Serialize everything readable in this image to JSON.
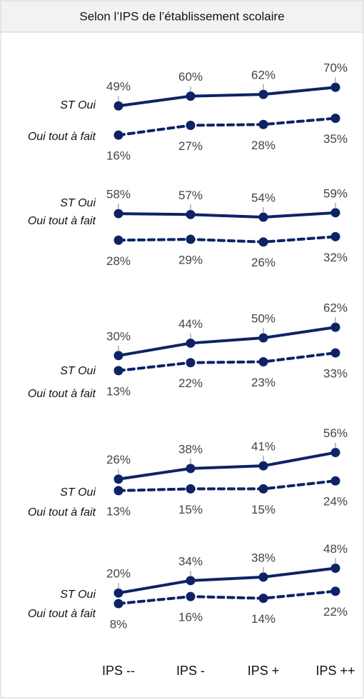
{
  "title": "Selon l’IPS de l’établissement scolaire",
  "categories": [
    "IPS --",
    "IPS -",
    "IPS +",
    "IPS ++"
  ],
  "chart_data": [
    {
      "type": "line",
      "ylim": [
        0,
        100
      ],
      "series": [
        {
          "name": "ST Oui",
          "color": "#0d2366",
          "values": [
            49,
            60,
            62,
            70
          ],
          "value_labels": [
            "49%",
            "60%",
            "62%",
            "70%"
          ]
        },
        {
          "name": "Oui tout à fait",
          "color": "#0d2366",
          "dashed": true,
          "values": [
            16,
            27,
            28,
            35
          ],
          "value_labels": [
            "16%",
            "27%",
            "28%",
            "35%"
          ]
        }
      ]
    },
    {
      "type": "line",
      "ylim": [
        0,
        100
      ],
      "series": [
        {
          "name": "ST Oui",
          "color": "#0d2366",
          "values": [
            58,
            57,
            54,
            59
          ],
          "value_labels": [
            "58%",
            "57%",
            "54%",
            "59%"
          ]
        },
        {
          "name": "Oui tout à fait",
          "color": "#0d2366",
          "dashed": true,
          "values": [
            28,
            29,
            26,
            32
          ],
          "value_labels": [
            "28%",
            "29%",
            "26%",
            "32%"
          ]
        }
      ]
    },
    {
      "type": "line",
      "ylim": [
        0,
        100
      ],
      "series": [
        {
          "name": "ST Oui",
          "color": "#0d2366",
          "values": [
            30,
            44,
            50,
            62
          ],
          "value_labels": [
            "30%",
            "44%",
            "50%",
            "62%"
          ]
        },
        {
          "name": "Oui tout à fait",
          "color": "#0d2366",
          "dashed": true,
          "values": [
            13,
            22,
            23,
            33
          ],
          "value_labels": [
            "13%",
            "22%",
            "23%",
            "33%"
          ]
        }
      ]
    },
    {
      "type": "line",
      "ylim": [
        0,
        100
      ],
      "series": [
        {
          "name": "ST Oui",
          "color": "#0d2366",
          "values": [
            26,
            38,
            41,
            56
          ],
          "value_labels": [
            "26%",
            "38%",
            "41%",
            "56%"
          ]
        },
        {
          "name": "Oui tout à fait",
          "color": "#0d2366",
          "dashed": true,
          "values": [
            13,
            15,
            15,
            24
          ],
          "value_labels": [
            "13%",
            "15%",
            "15%",
            "24%"
          ]
        }
      ]
    },
    {
      "type": "line",
      "ylim": [
        0,
        100
      ],
      "series": [
        {
          "name": "ST Oui",
          "color": "#0d2366",
          "values": [
            20,
            34,
            38,
            48
          ],
          "value_labels": [
            "20%",
            "34%",
            "38%",
            "48%"
          ]
        },
        {
          "name": "Oui tout à fait",
          "color": "#0d2366",
          "dashed": true,
          "values": [
            8,
            16,
            14,
            22
          ],
          "value_labels": [
            "8%",
            "16%",
            "14%",
            "22%"
          ]
        }
      ]
    }
  ]
}
